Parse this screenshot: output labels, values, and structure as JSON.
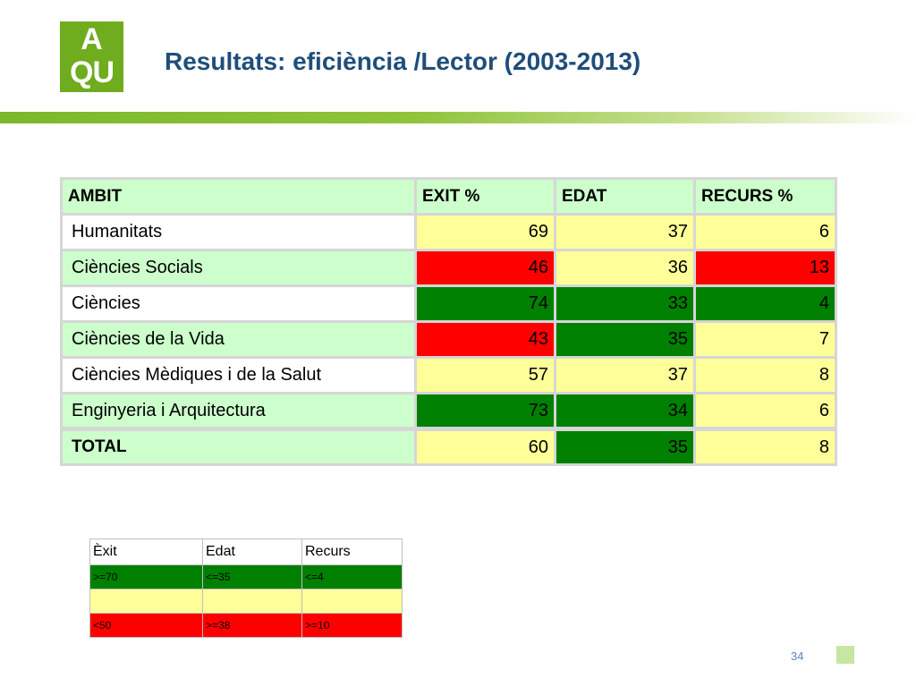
{
  "logo": {
    "line1": "A",
    "line2": "QU"
  },
  "title": "Resultats: eficiència /Lector (2003-2013)",
  "table": {
    "headers": [
      "AMBIT",
      "EXIT %",
      "EDAT",
      "RECURS %"
    ],
    "rows": [
      {
        "ambit": "Humanitats",
        "exit": "69",
        "edat": "37",
        "recurs": "6"
      },
      {
        "ambit": "Ciències Socials",
        "exit": "46",
        "edat": "36",
        "recurs": "13"
      },
      {
        "ambit": "Ciències",
        "exit": "74",
        "edat": "33",
        "recurs": "4"
      },
      {
        "ambit": "Ciències de la Vida",
        "exit": "43",
        "edat": "35",
        "recurs": "7"
      },
      {
        "ambit": "Ciències Mèdiques i de la Salut",
        "exit": "57",
        "edat": "37",
        "recurs": "8"
      },
      {
        "ambit": "Enginyeria i Arquitectura",
        "exit": "73",
        "edat": "34",
        "recurs": "6"
      }
    ],
    "total": {
      "ambit": "TOTAL",
      "exit": "60",
      "edat": "35",
      "recurs": "8"
    }
  },
  "legend": {
    "headers": [
      "Èxit",
      "Edat",
      "Recurs"
    ],
    "good": [
      "&gt;=70",
      "&lt;=35",
      "&lt;=4"
    ],
    "mid": [
      "",
      "",
      ""
    ],
    "bad": [
      "&lt;50",
      "&gt;=38",
      "&gt;=10"
    ]
  },
  "colors": {
    "good": "#008000",
    "mid": "#ffff99",
    "bad": "#ff0000",
    "header_bg": "#ccffcc",
    "title": "#1f4e7a",
    "logo": "#6fac1e"
  },
  "page_number": "34"
}
